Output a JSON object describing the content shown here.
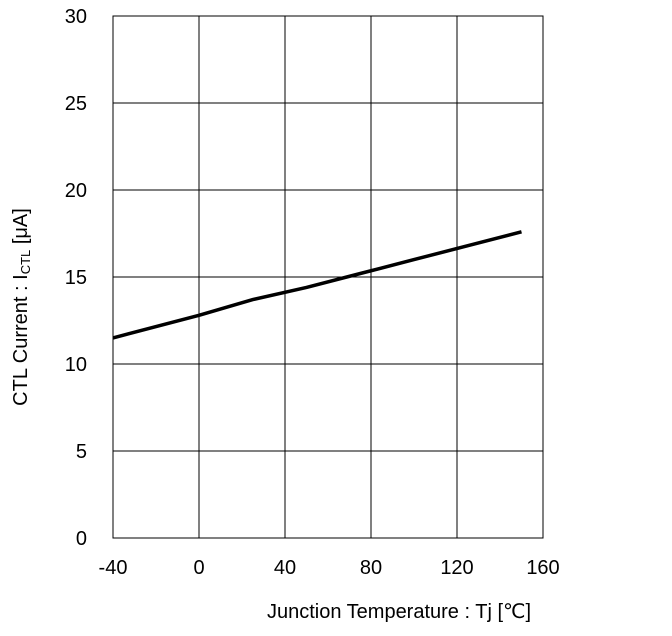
{
  "chart_data": {
    "type": "line",
    "title": "",
    "xlabel": "Junction Temperature : Tj [℃]",
    "ylabel": {
      "prefix": "CTL Current : I",
      "subscript": "CTL",
      "suffix": " [μA]"
    },
    "xlim": [
      -40,
      160
    ],
    "ylim": [
      0,
      30
    ],
    "x_ticks": [
      -40,
      0,
      40,
      80,
      120,
      160
    ],
    "y_ticks": [
      0,
      5,
      10,
      15,
      20,
      25,
      30
    ],
    "grid": true,
    "series": [
      {
        "x": [
          -40,
          0,
          25,
          50,
          75,
          100,
          125,
          150
        ],
        "y": [
          11.5,
          12.8,
          13.7,
          14.4,
          15.2,
          16.0,
          16.8,
          17.6
        ]
      }
    ],
    "colors": {
      "line": "#000000",
      "grid": "#000000"
    }
  }
}
